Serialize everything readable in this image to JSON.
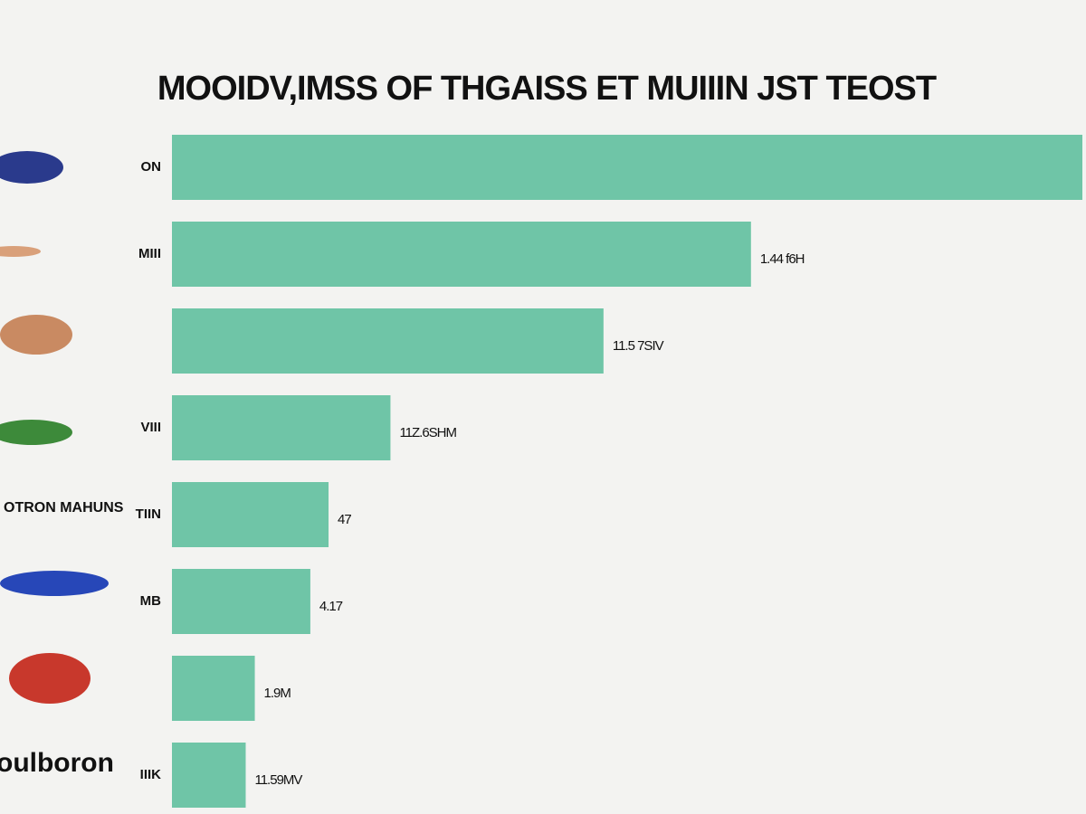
{
  "chart_data": {
    "type": "bar",
    "orientation": "horizontal",
    "title": "MOOIDV,IMSS OF THGAISS ET MUIIIN JST TEOST",
    "categories": [
      "ON",
      "MIII",
      null,
      "VIII",
      "TIIN",
      "MB",
      null,
      "IIIK"
    ],
    "values": [
      100,
      63.6,
      47.4,
      24,
      17.2,
      15.2,
      9.1,
      8.1
    ],
    "bar_labels": [
      null,
      "1.44 f6H",
      "11.5 7SIV",
      "11Z.6SHM",
      "47",
      "4.17",
      "1.9M",
      "11.59MV"
    ],
    "xlim": [
      0,
      100
    ],
    "color": "#6fc5a7",
    "annotations": [
      "OTRON MAHUNS",
      "oulboron"
    ]
  }
}
